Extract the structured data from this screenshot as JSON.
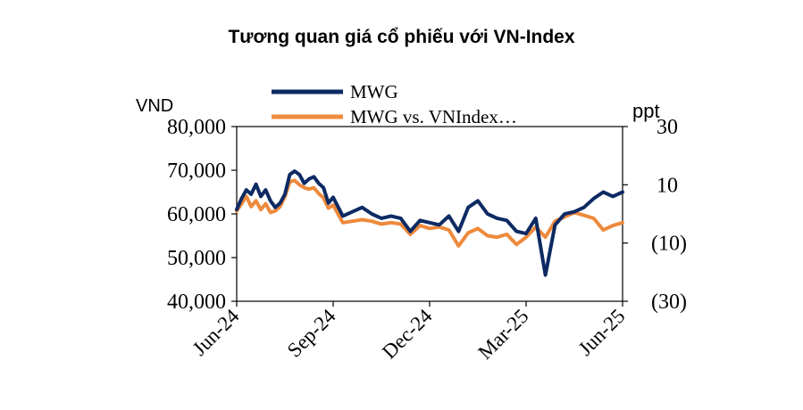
{
  "chart_data": {
    "type": "line",
    "title": "Tương quan giá cổ phiếu với VN-Index",
    "y_left_label": "VND",
    "y_right_label": "ppt",
    "y_left_ticks": [
      "80,000",
      "70,000",
      "60,000",
      "50,000",
      "40,000"
    ],
    "y_right_ticks": [
      "30",
      "10",
      "(10)",
      "(30)"
    ],
    "x_ticks": [
      "Jun-24",
      "Sep-24",
      "Dec-24",
      "Mar-25",
      "Jun-25"
    ],
    "y_left_range": [
      40000,
      80000
    ],
    "y_right_range": [
      -30,
      30
    ],
    "grid": false,
    "legend_position": "top",
    "series": [
      {
        "name": "MWG",
        "axis": "left",
        "color": "#0d2a63",
        "x": [
          0.0,
          0.05,
          0.1,
          0.15,
          0.2,
          0.25,
          0.3,
          0.35,
          0.4,
          0.45,
          0.5,
          0.55,
          0.6,
          0.65,
          0.7,
          0.75,
          0.8,
          0.85,
          0.9,
          0.95,
          1.0,
          1.1,
          1.2,
          1.3,
          1.4,
          1.5,
          1.6,
          1.7,
          1.8,
          1.9,
          2.0,
          2.1,
          2.2,
          2.3,
          2.4,
          2.5,
          2.6,
          2.7,
          2.8,
          2.9,
          3.0,
          3.1,
          3.2,
          3.3,
          3.4,
          3.5,
          3.6,
          3.7,
          3.8,
          3.9,
          4.0
        ],
        "values": [
          61000,
          63500,
          65500,
          64500,
          66800,
          64000,
          65500,
          63000,
          61500,
          62500,
          64500,
          69000,
          69800,
          69000,
          67000,
          68000,
          68500,
          67000,
          66000,
          62500,
          63800,
          59500,
          60500,
          61500,
          60000,
          59000,
          59500,
          59000,
          56000,
          58500,
          58000,
          57500,
          59500,
          56000,
          61500,
          63000,
          60000,
          59000,
          58500,
          56000,
          55500,
          59000,
          46000,
          57500,
          60000,
          60500,
          61500,
          63500,
          65000,
          64000,
          65000
        ]
      },
      {
        "name": "MWG vs. VNIndex…",
        "axis": "right",
        "color": "#ee8a3c",
        "x": [
          0.0,
          0.05,
          0.1,
          0.15,
          0.2,
          0.25,
          0.3,
          0.35,
          0.4,
          0.45,
          0.5,
          0.55,
          0.6,
          0.65,
          0.7,
          0.75,
          0.8,
          0.85,
          0.9,
          0.95,
          1.0,
          1.1,
          1.2,
          1.3,
          1.4,
          1.5,
          1.6,
          1.7,
          1.8,
          1.9,
          2.0,
          2.1,
          2.2,
          2.3,
          2.4,
          2.5,
          2.6,
          2.7,
          2.8,
          2.9,
          3.0,
          3.1,
          3.2,
          3.3,
          3.4,
          3.5,
          3.6,
          3.7,
          3.8,
          3.9,
          4.0
        ],
        "values": [
          1.0,
          3.5,
          6.0,
          2.5,
          4.5,
          1.5,
          3.5,
          0.5,
          1.0,
          2.5,
          6.0,
          11.0,
          11.5,
          10.0,
          9.0,
          8.5,
          9.0,
          7.0,
          5.5,
          2.0,
          3.0,
          -3.0,
          -2.5,
          -2.0,
          -2.5,
          -3.5,
          -3.0,
          -3.5,
          -7.0,
          -4.0,
          -5.0,
          -4.5,
          -5.5,
          -11.0,
          -6.5,
          -5.0,
          -7.5,
          -8.0,
          -7.0,
          -10.5,
          -8.0,
          -4.5,
          -8.0,
          -2.5,
          -1.0,
          0.5,
          -0.5,
          -1.5,
          -5.5,
          -4.0,
          -3.0
        ]
      }
    ]
  }
}
